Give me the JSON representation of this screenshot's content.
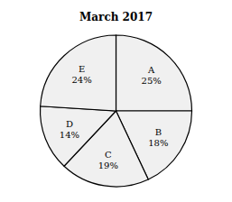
{
  "chart_data": {
    "type": "pie",
    "title": "March 2017",
    "categories": [
      "A",
      "B",
      "C",
      "D",
      "E"
    ],
    "values": [
      25,
      18,
      19,
      14,
      24
    ],
    "value_labels": [
      "25%",
      "18%",
      "19%",
      "14%",
      "24%"
    ],
    "data_labels": true,
    "colors": [
      "#f0f0f0",
      "#f0f0f0",
      "#f0f0f0",
      "#f0f0f0",
      "#f0f0f0"
    ]
  }
}
